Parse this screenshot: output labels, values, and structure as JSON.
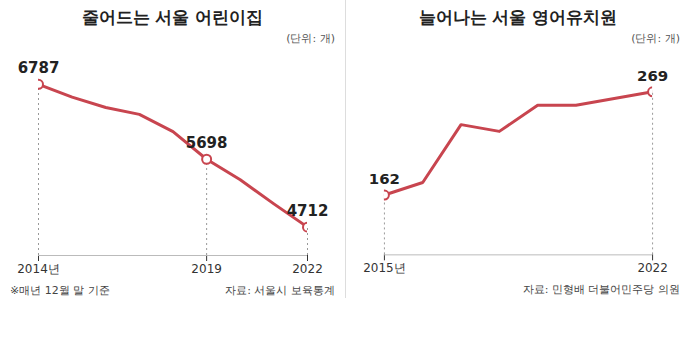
{
  "chart_data": [
    {
      "type": "line",
      "title": "줄어드는 서울 어린이집",
      "subtitle": "(단위: 개)",
      "x": [
        2014,
        2015,
        2016,
        2017,
        2018,
        2019,
        2020,
        2021,
        2022
      ],
      "values": [
        6787,
        6600,
        6450,
        6350,
        6100,
        5698,
        5400,
        5050,
        4712
      ],
      "value_labels": [
        "6787",
        null,
        null,
        null,
        null,
        "5698",
        null,
        null,
        "4712"
      ],
      "color": "#c8454f",
      "marker": "circle",
      "xlim": [
        2014,
        2022
      ],
      "xticks": [
        {
          "value": 2014,
          "label": "2014년"
        },
        2019,
        2022
      ],
      "ylim": [
        4300,
        6900
      ],
      "tick_labels": "x",
      "footnote": "※매년 12월 말 기준",
      "caption": "자료: 서울시 보육통계"
    },
    {
      "type": "line",
      "title": "늘어나는 서울 영어유치원",
      "subtitle": "(단위: 개)",
      "x": [
        2015,
        2016,
        2017,
        2018,
        2019,
        2020,
        2021,
        2022
      ],
      "values": [
        162,
        175,
        235,
        228,
        255,
        255,
        262,
        269
      ],
      "value_labels": [
        "162",
        null,
        null,
        null,
        null,
        null,
        null,
        "269"
      ],
      "color": "#c8454f",
      "marker": "circle",
      "xlim": [
        2015,
        2022
      ],
      "xticks": [
        {
          "value": 2015,
          "label": "2015년"
        },
        2022
      ],
      "ylim": [
        100,
        285
      ],
      "tick_labels": "x",
      "caption": "자료: 민형배 더불어민주당 의원"
    }
  ]
}
